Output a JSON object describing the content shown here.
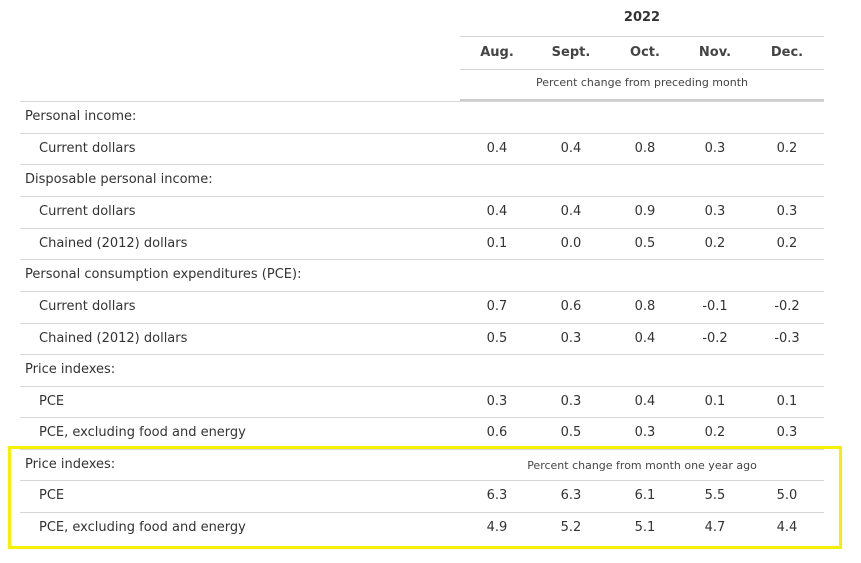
{
  "header": {
    "year": "2022",
    "months": [
      "Aug.",
      "Sept.",
      "Oct.",
      "Nov.",
      "Dec."
    ],
    "subheader": "Percent change from preceding month"
  },
  "rows": [
    {
      "type": "section",
      "label": "Personal income:"
    },
    {
      "type": "data",
      "label": "Current dollars",
      "values": [
        "0.4",
        "0.4",
        "0.8",
        "0.3",
        "0.2"
      ]
    },
    {
      "type": "section",
      "label": "Disposable personal income:"
    },
    {
      "type": "data",
      "label": "Current dollars",
      "values": [
        "0.4",
        "0.4",
        "0.9",
        "0.3",
        "0.3"
      ]
    },
    {
      "type": "data",
      "label": "Chained (2012) dollars",
      "values": [
        "0.1",
        "0.0",
        "0.5",
        "0.2",
        "0.2"
      ]
    },
    {
      "type": "section",
      "label": "Personal consumption expenditures (PCE):"
    },
    {
      "type": "data",
      "label": "Current dollars",
      "values": [
        "0.7",
        "0.6",
        "0.8",
        "-0.1",
        "-0.2"
      ]
    },
    {
      "type": "data",
      "label": "Chained (2012) dollars",
      "values": [
        "0.5",
        "0.3",
        "0.4",
        "-0.2",
        "-0.3"
      ]
    },
    {
      "type": "section",
      "label": "Price indexes:"
    },
    {
      "type": "data",
      "label": "PCE",
      "values": [
        "0.3",
        "0.3",
        "0.4",
        "0.1",
        "0.1"
      ]
    },
    {
      "type": "data",
      "label": "PCE, excluding food and energy",
      "values": [
        "0.6",
        "0.5",
        "0.3",
        "0.2",
        "0.3"
      ]
    },
    {
      "type": "section",
      "label": "Price indexes:",
      "note": "Percent change from month one year ago"
    },
    {
      "type": "data",
      "label": "PCE",
      "values": [
        "6.3",
        "6.3",
        "6.1",
        "5.5",
        "5.0"
      ]
    },
    {
      "type": "data",
      "label": "PCE, excluding food and energy",
      "values": [
        "4.9",
        "5.2",
        "5.1",
        "4.7",
        "4.4"
      ]
    }
  ],
  "highlight_color": "#f5f000"
}
